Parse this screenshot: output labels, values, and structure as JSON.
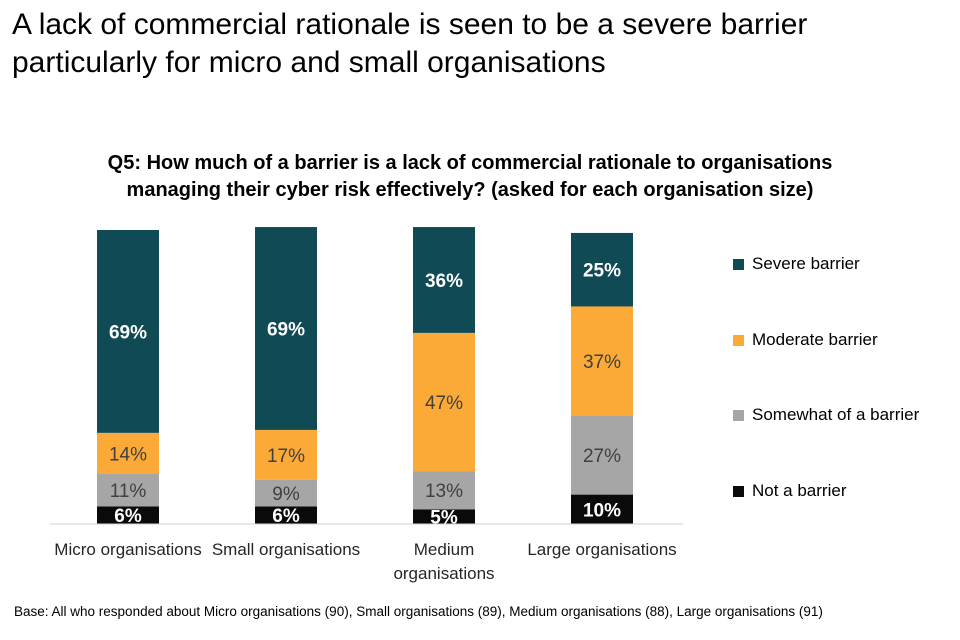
{
  "page_title": "A lack of commercial rationale is seen to be a severe barrier particularly for micro and small organisations",
  "base_note": "Base: All who responded about Micro organisations (90), Small organisations (89), Medium organisations (88), Large organisations (91)",
  "colors": {
    "severe": "#0f4a55",
    "moderate": "#fba937",
    "somewhat": "#a6a6a6",
    "not": "#0a0a0a"
  },
  "chart_data": {
    "type": "bar",
    "stacked": true,
    "title": "Q5: How much of a barrier is a lack of commercial rationale to organisations managing their cyber risk effectively? (asked for each organisation size)",
    "categories": [
      "Micro organisations",
      "Small organisations",
      "Medium organisations",
      "Large organisations"
    ],
    "series": [
      {
        "name": "Not a barrier",
        "key": "not",
        "values": [
          6,
          6,
          5,
          10
        ],
        "labels": [
          "6%",
          "6%",
          "5%",
          "10%"
        ]
      },
      {
        "name": "Somewhat of a barrier",
        "key": "somewhat",
        "values": [
          11,
          9,
          13,
          27
        ],
        "labels": [
          "11%",
          "9%",
          "13%",
          "27%"
        ]
      },
      {
        "name": "Moderate barrier",
        "key": "moderate",
        "values": [
          14,
          17,
          47,
          37
        ],
        "labels": [
          "14%",
          "17%",
          "47%",
          "37%"
        ]
      },
      {
        "name": "Severe barrier",
        "key": "severe",
        "values": [
          69,
          69,
          36,
          25
        ],
        "labels": [
          "69%",
          "69%",
          "36%",
          "25%"
        ]
      }
    ],
    "legend": [
      "Severe barrier",
      "Moderate barrier",
      "Somewhat of a barrier",
      "Not a barrier"
    ],
    "ylim": [
      0,
      100
    ],
    "xlabel": "",
    "ylabel": "",
    "grid": false
  }
}
